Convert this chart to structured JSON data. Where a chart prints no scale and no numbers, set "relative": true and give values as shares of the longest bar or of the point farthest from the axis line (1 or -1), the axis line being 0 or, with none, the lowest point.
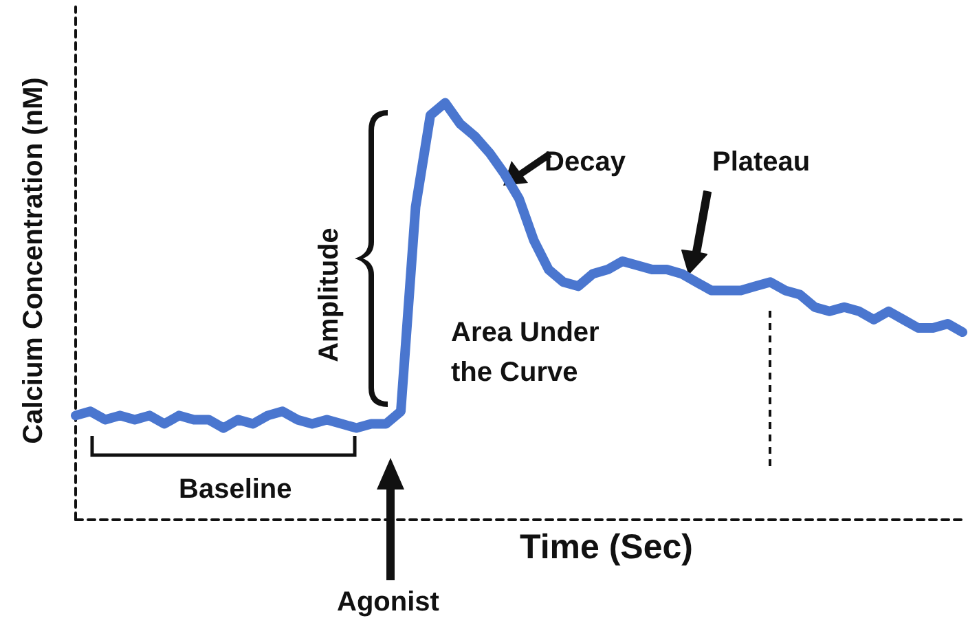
{
  "chart_data": {
    "type": "line",
    "xlabel": "Time (Sec)",
    "ylabel": "Calcium Concentration (nM)",
    "relative": true,
    "categories": [
      null,
      null,
      null,
      null,
      null,
      null,
      null,
      null,
      null,
      null,
      null,
      null,
      null,
      null,
      null,
      null,
      null,
      null,
      null,
      null,
      null,
      null,
      null,
      null,
      null,
      null,
      null,
      null,
      null,
      null,
      null,
      null,
      null,
      null,
      null,
      null,
      null,
      null,
      null,
      null,
      null,
      null,
      null,
      null,
      null,
      null,
      null,
      null,
      null,
      null,
      null,
      null,
      null,
      null,
      null,
      null,
      null,
      null,
      null,
      null,
      null
    ],
    "series": [
      {
        "color": "#4a76cf",
        "values": [
          0.25,
          0.26,
          0.24,
          0.25,
          0.24,
          0.25,
          0.23,
          0.25,
          0.24,
          0.24,
          0.22,
          0.24,
          0.23,
          0.25,
          0.26,
          0.24,
          0.23,
          0.24,
          0.23,
          0.22,
          0.23,
          0.23,
          0.26,
          0.75,
          0.97,
          1,
          0.95,
          0.92,
          0.88,
          0.83,
          0.77,
          0.67,
          0.6,
          0.57,
          0.56,
          0.59,
          0.6,
          0.62,
          0.61,
          0.6,
          0.6,
          0.59,
          0.57,
          0.55,
          0.55,
          0.55,
          0.56,
          0.57,
          0.55,
          0.54,
          0.51,
          0.5,
          0.51,
          0.5,
          0.48,
          0.5,
          0.48,
          0.46,
          0.46,
          0.47,
          0.45
        ]
      }
    ],
    "annotations": [
      "Decay",
      "Plateau",
      "Area Under the Curve",
      "Amplitude",
      "Baseline",
      "Agonist"
    ]
  }
}
